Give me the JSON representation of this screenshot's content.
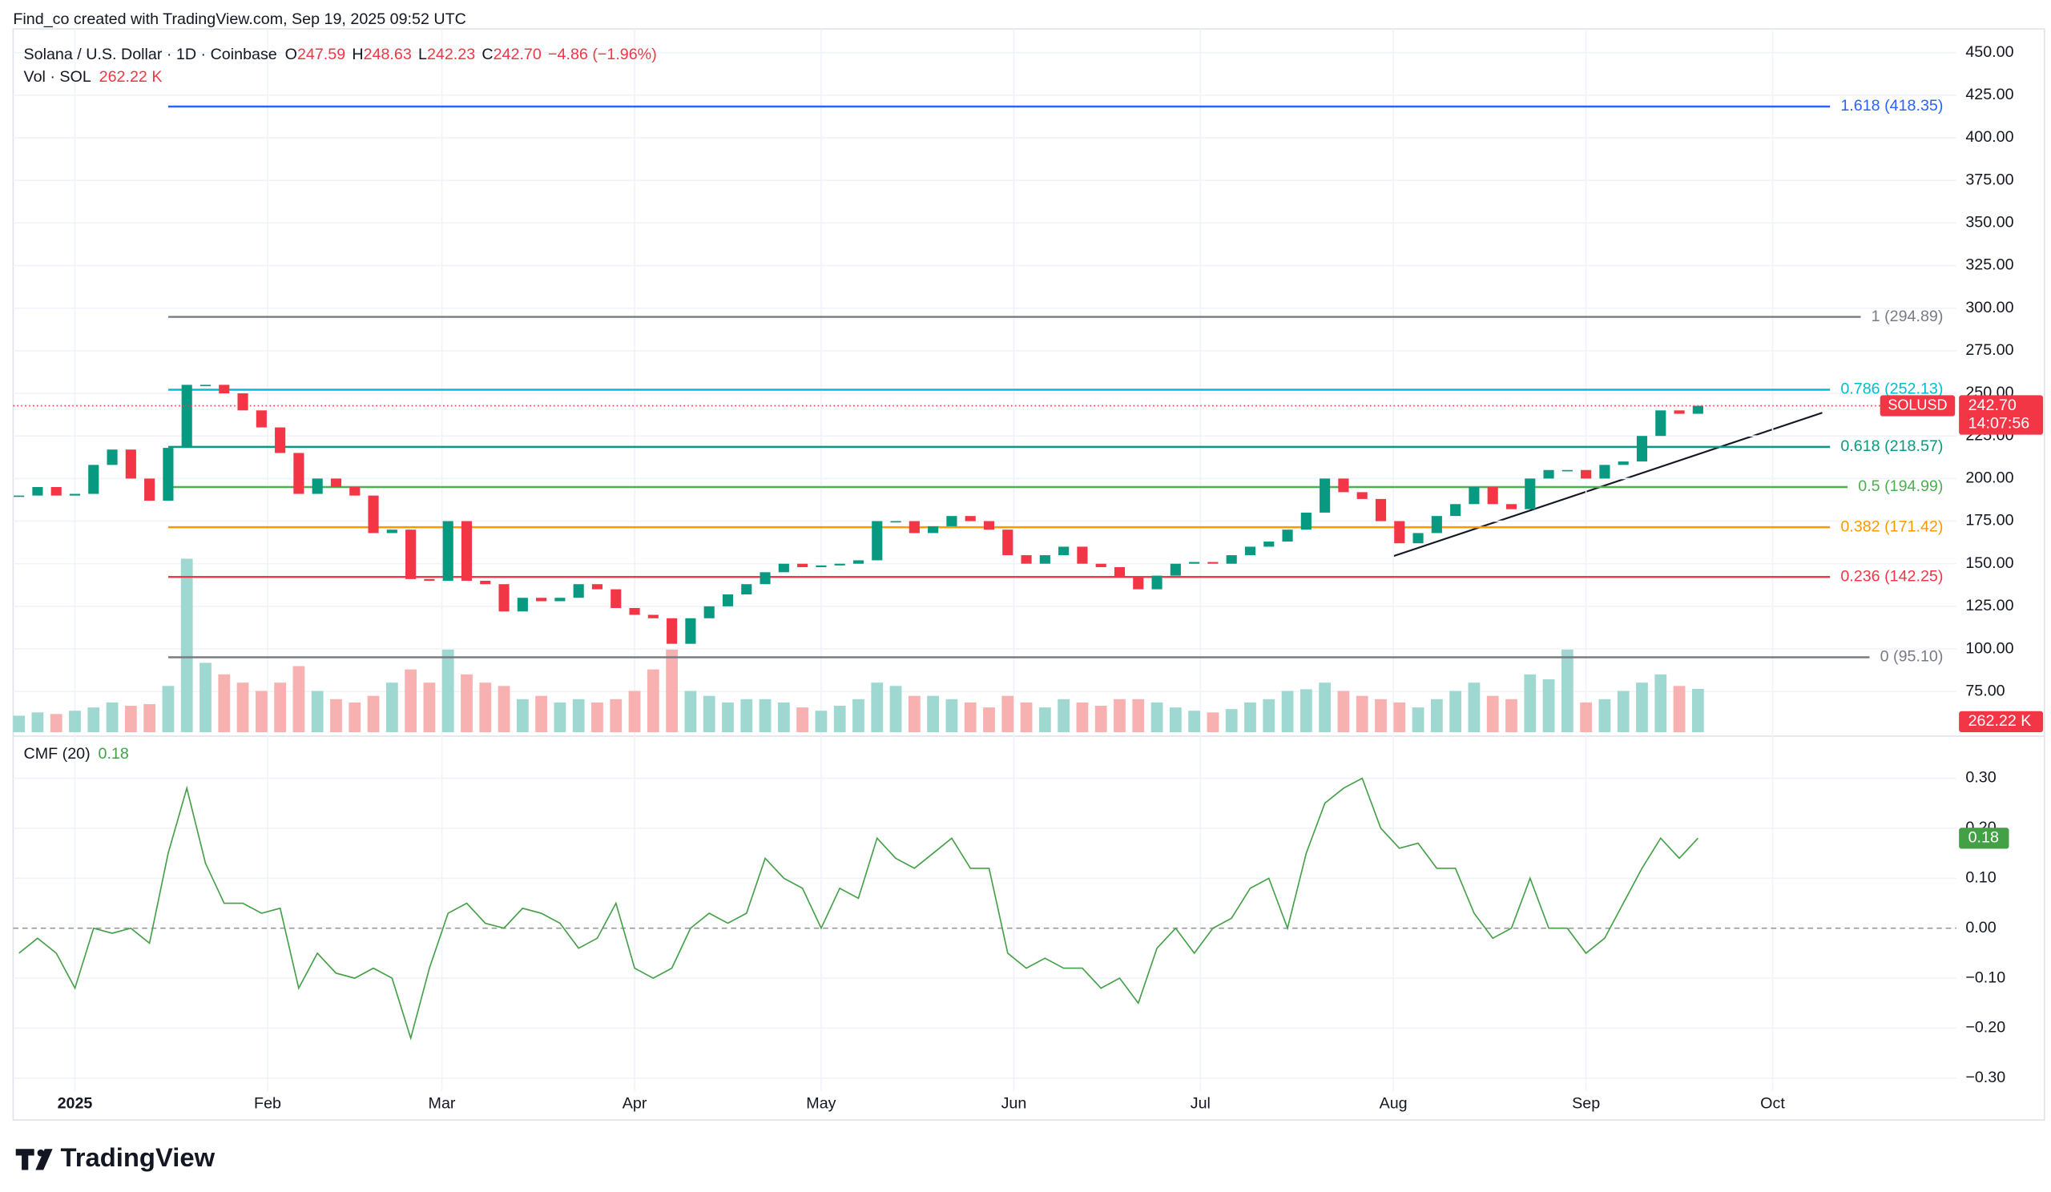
{
  "header": {
    "credit": "Find_co created with TradingView.com, Sep 19, 2025 09:52 UTC",
    "brand": "TradingView"
  },
  "chart_data": [
    {
      "type": "candlestick",
      "title": "Solana / U.S. Dollar · 1D · Coinbase",
      "ohlc": [
        {
          "name": "O",
          "value": 247.59
        },
        {
          "name": "H",
          "value": 248.63
        },
        {
          "name": "L",
          "value": 242.23
        },
        {
          "name": "C",
          "value": 242.7,
          "label": "242.70"
        }
      ],
      "change": "−4.86 (−1.96%)",
      "up_color": "#089981",
      "down_color": "#f23645",
      "values": [
        190,
        195,
        190,
        191,
        208,
        217,
        200,
        187,
        218,
        255,
        255,
        250,
        240,
        230,
        215,
        191,
        200,
        195,
        190,
        168,
        170,
        141,
        140,
        175,
        140,
        138,
        122,
        130,
        128,
        130,
        138,
        135,
        124,
        120,
        118,
        103,
        118,
        125,
        132,
        138,
        145,
        150,
        148,
        149,
        150,
        152,
        175,
        175,
        168,
        172,
        178,
        175,
        170,
        155,
        150,
        155,
        160,
        150,
        148,
        142,
        135,
        143,
        150,
        151,
        150,
        155,
        160,
        163,
        170,
        180,
        200,
        192,
        188,
        175,
        162,
        168,
        178,
        185,
        195,
        185,
        182,
        200,
        205,
        205,
        200,
        208,
        210,
        225,
        240,
        238,
        242.7
      ],
      "last_price": {
        "symbol": "SOLUSD",
        "label": "242.70",
        "countdown": "14:07:56"
      },
      "volume": {
        "title": "Vol · SOL",
        "last_label": "262.22 K",
        "up_color": "#9fd8d0",
        "down_color": "#f7b1b0",
        "values": [
          100,
          120,
          110,
          130,
          150,
          180,
          160,
          170,
          280,
          1050,
          420,
          350,
          300,
          250,
          300,
          400,
          250,
          200,
          180,
          220,
          300,
          380,
          300,
          500,
          350,
          300,
          280,
          200,
          220,
          180,
          200,
          180,
          200,
          250,
          380,
          500,
          250,
          220,
          180,
          200,
          200,
          180,
          150,
          130,
          160,
          200,
          300,
          280,
          220,
          220,
          200,
          180,
          150,
          220,
          180,
          150,
          200,
          180,
          160,
          200,
          200,
          180,
          150,
          130,
          120,
          140,
          180,
          200,
          250,
          260,
          300,
          250,
          220,
          200,
          180,
          150,
          200,
          250,
          300,
          220,
          200,
          350,
          320,
          500,
          180,
          200,
          250,
          300,
          350,
          280,
          262.22
        ]
      },
      "levels": [
        {
          "value": 418.35,
          "label": "1.618 (418.35)",
          "color": "#2962ff"
        },
        {
          "value": 294.89,
          "label": "1 (294.89)",
          "color": "#787b86"
        },
        {
          "value": 252.13,
          "label": "0.786 (252.13)",
          "color": "#00bcd4"
        },
        {
          "value": 218.57,
          "label": "0.618 (218.57)",
          "color": "#089981"
        },
        {
          "value": 194.99,
          "label": "0.5 (194.99)",
          "color": "#4caf50"
        },
        {
          "value": 171.42,
          "label": "0.382 (171.42)",
          "color": "#ff9800"
        },
        {
          "value": 142.25,
          "label": "0.236 (142.25)",
          "color": "#f23645"
        },
        {
          "value": 95.1,
          "label": "0 (95.10)",
          "color": "#787b86"
        }
      ],
      "xlim": [
        -0.31,
        103.85
      ],
      "xticks": [
        {
          "value": 3,
          "label": "2025"
        },
        {
          "value": 13.33,
          "label": "Feb"
        },
        {
          "value": 22.67,
          "label": "Mar"
        },
        {
          "value": 33,
          "label": "Apr"
        },
        {
          "value": 43,
          "label": "May"
        },
        {
          "value": 53.33,
          "label": "Jun"
        },
        {
          "value": 63.33,
          "label": "Jul"
        },
        {
          "value": 73.67,
          "label": "Aug"
        },
        {
          "value": 84,
          "label": "Sep"
        },
        {
          "value": 94,
          "label": "Oct"
        }
      ],
      "ylim": [
        51.1,
        463.9
      ],
      "yticks": [
        {
          "value": 75,
          "label": "75.00"
        },
        {
          "value": 100,
          "label": "100.00"
        },
        {
          "value": 125,
          "label": "125.00"
        },
        {
          "value": 150,
          "label": "150.00"
        },
        {
          "value": 175,
          "label": "175.00"
        },
        {
          "value": 200,
          "label": "200.00"
        },
        {
          "value": 225,
          "label": "225.00"
        },
        {
          "value": 250,
          "label": "250.00"
        },
        {
          "value": 275,
          "label": "275.00"
        },
        {
          "value": 300,
          "label": "300.00"
        },
        {
          "value": 325,
          "label": "325.00"
        },
        {
          "value": 350,
          "label": "350.00"
        },
        {
          "value": 375,
          "label": "375.00"
        },
        {
          "value": 400,
          "label": "400.00"
        },
        {
          "value": 425,
          "label": "425.00"
        },
        {
          "value": 450,
          "label": "450.00"
        }
      ],
      "grid": true
    },
    {
      "type": "line",
      "title": "CMF (20)",
      "color": "#43a047",
      "values": [
        -0.05,
        -0.02,
        -0.05,
        -0.12,
        0.0,
        -0.01,
        0.0,
        -0.03,
        0.15,
        0.28,
        0.13,
        0.05,
        0.05,
        0.03,
        0.04,
        -0.12,
        -0.05,
        -0.09,
        -0.1,
        -0.08,
        -0.1,
        -0.22,
        -0.08,
        0.03,
        0.05,
        0.01,
        0.0,
        0.04,
        0.03,
        0.01,
        -0.04,
        -0.02,
        0.05,
        -0.08,
        -0.1,
        -0.08,
        0.0,
        0.03,
        0.01,
        0.03,
        0.14,
        0.1,
        0.08,
        0.0,
        0.08,
        0.06,
        0.18,
        0.14,
        0.12,
        0.15,
        0.18,
        0.12,
        0.12,
        -0.05,
        -0.08,
        -0.06,
        -0.08,
        -0.08,
        -0.12,
        -0.1,
        -0.15,
        -0.04,
        0.0,
        -0.05,
        0.0,
        0.02,
        0.08,
        0.1,
        0.0,
        0.15,
        0.25,
        0.28,
        0.3,
        0.2,
        0.16,
        0.17,
        0.12,
        0.12,
        0.03,
        -0.02,
        0.0,
        0.1,
        0.0,
        0.0,
        -0.05,
        -0.02,
        0.05,
        0.12,
        0.18,
        0.14,
        0.18
      ],
      "ylim": [
        -0.326,
        0.379
      ],
      "yticks": [
        {
          "value": 0.3,
          "label": "0.30"
        },
        {
          "value": 0.2,
          "label": "0.20"
        },
        {
          "value": 0.1,
          "label": "0.10"
        },
        {
          "value": 0,
          "label": "0.00"
        },
        {
          "value": -0.1,
          "label": "−0.10"
        },
        {
          "value": -0.2,
          "label": "−0.20"
        },
        {
          "value": -0.3,
          "label": "−0.30"
        }
      ],
      "grid": true
    }
  ]
}
